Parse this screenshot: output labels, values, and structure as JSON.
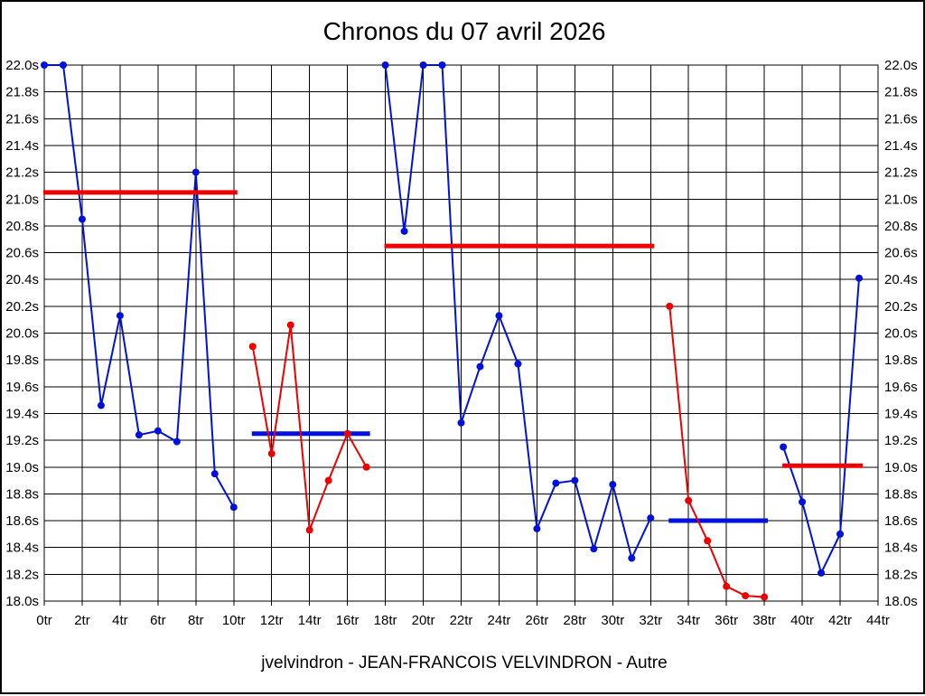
{
  "page": {
    "title": "Chronos du 07 avril 2026",
    "caption": "jvelvindron - JEAN-FRANCOIS VELVINDRON - Autre"
  },
  "colors": {
    "blue": "#0011dd",
    "red": "#ee0000",
    "grid": "#000000",
    "background": "#ffffff",
    "text": "#000000"
  },
  "chart_data": {
    "type": "line",
    "title": "Chronos du 07 avril 2026",
    "subtitle": "jvelvindron - JEAN-FRANCOIS VELVINDRON - Autre",
    "xlabel": "",
    "ylabel": "",
    "x_unit": "tr",
    "y_unit": "s",
    "xlim": [
      0,
      44
    ],
    "ylim": [
      18.0,
      22.0
    ],
    "grid": true,
    "legend_position": "none",
    "x_ticks": [
      0,
      2,
      4,
      6,
      8,
      10,
      12,
      14,
      16,
      18,
      20,
      22,
      24,
      26,
      28,
      30,
      32,
      34,
      36,
      38,
      40,
      42,
      44
    ],
    "x_tick_labels": [
      "0tr",
      "2tr",
      "4tr",
      "6tr",
      "8tr",
      "10tr",
      "12tr",
      "14tr",
      "16tr",
      "18tr",
      "20tr",
      "22tr",
      "24tr",
      "26tr",
      "28tr",
      "30tr",
      "32tr",
      "34tr",
      "36tr",
      "38tr",
      "40tr",
      "42tr",
      "44tr"
    ],
    "y_ticks": [
      18.0,
      18.2,
      18.4,
      18.6,
      18.8,
      19.0,
      19.2,
      19.4,
      19.6,
      19.8,
      20.0,
      20.2,
      20.4,
      20.6,
      20.8,
      21.0,
      21.2,
      21.4,
      21.6,
      21.8,
      22.0
    ],
    "y_tick_labels": [
      "18.0s",
      "18.2s",
      "18.4s",
      "18.6s",
      "18.8s",
      "19.0s",
      "19.2s",
      "19.4s",
      "19.6s",
      "19.8s",
      "20.0s",
      "20.2s",
      "20.4s",
      "20.6s",
      "20.8s",
      "21.0s",
      "21.2s",
      "21.4s",
      "21.6s",
      "21.8s",
      "22.0s"
    ],
    "series": [
      {
        "name": "chrono-segment-1",
        "color": "blue",
        "x": [
          0,
          1,
          2,
          3,
          4,
          5,
          6,
          7,
          8,
          9,
          10
        ],
        "values": [
          22.0,
          22.0,
          20.85,
          19.46,
          20.13,
          19.24,
          19.27,
          19.19,
          21.2,
          18.95,
          18.7
        ]
      },
      {
        "name": "chrono-segment-2",
        "color": "red",
        "x": [
          11,
          12,
          13,
          14,
          15,
          16,
          17
        ],
        "values": [
          19.9,
          19.1,
          20.06,
          18.53,
          18.9,
          19.25,
          19.0
        ]
      },
      {
        "name": "chrono-segment-3",
        "color": "blue",
        "x": [
          18,
          19,
          20,
          21,
          22,
          23,
          24,
          25,
          26,
          27,
          28,
          29,
          30,
          31,
          32
        ],
        "values": [
          22.0,
          20.76,
          22.0,
          22.0,
          19.33,
          19.75,
          20.13,
          19.77,
          18.54,
          18.88,
          18.9,
          18.39,
          18.87,
          18.32,
          18.62
        ]
      },
      {
        "name": "chrono-segment-4",
        "color": "red",
        "x": [
          33,
          34,
          35,
          36,
          37,
          38
        ],
        "values": [
          20.2,
          18.75,
          18.45,
          18.11,
          18.04,
          18.03
        ]
      },
      {
        "name": "chrono-segment-5",
        "color": "blue",
        "x": [
          39,
          40,
          41,
          42,
          43
        ],
        "values": [
          19.15,
          18.74,
          18.21,
          18.5,
          20.41
        ]
      }
    ],
    "mean_lines": [
      {
        "name": "mean-line-1",
        "color": "red",
        "x_start": 0,
        "x_end": 10,
        "value": 21.05
      },
      {
        "name": "mean-line-2",
        "color": "blue",
        "x_start": 11,
        "x_end": 17,
        "value": 19.25
      },
      {
        "name": "mean-line-3",
        "color": "red",
        "x_start": 18,
        "x_end": 32,
        "value": 20.65
      },
      {
        "name": "mean-line-4",
        "color": "blue",
        "x_start": 33,
        "x_end": 38,
        "value": 18.6
      },
      {
        "name": "mean-line-5",
        "color": "red",
        "x_start": 39,
        "x_end": 43,
        "value": 19.01
      }
    ]
  }
}
